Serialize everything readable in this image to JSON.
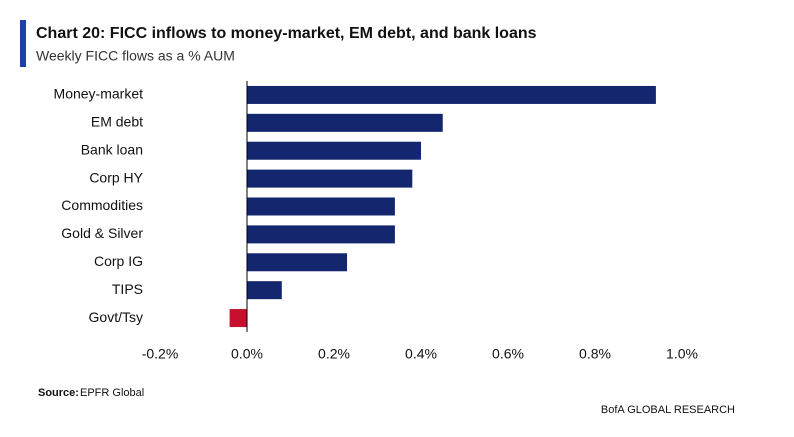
{
  "chart_data": {
    "type": "bar",
    "orientation": "horizontal",
    "title": "Chart 20: FICC inflows to money-market, EM debt, and bank loans",
    "subtitle": "Weekly FICC flows as a % AUM",
    "categories": [
      "Money-market",
      "EM debt",
      "Bank loan",
      "Corp HY",
      "Commodities",
      "Gold & Silver",
      "Corp IG",
      "TIPS",
      "Govt/Tsy"
    ],
    "values": [
      0.94,
      0.45,
      0.4,
      0.38,
      0.34,
      0.34,
      0.23,
      0.08,
      -0.04
    ],
    "colors": [
      "#14276e",
      "#14276e",
      "#14276e",
      "#14276e",
      "#14276e",
      "#14276e",
      "#14276e",
      "#14276e",
      "#c8102e"
    ],
    "xlim": [
      -0.2,
      1.0
    ],
    "xticks": [
      {
        "value": -0.2,
        "label": "-0.2%"
      },
      {
        "value": 0.0,
        "label": "0.0%"
      },
      {
        "value": 0.2,
        "label": "0.2%"
      },
      {
        "value": 0.4,
        "label": "0.4%"
      },
      {
        "value": 0.6,
        "label": "0.6%"
      },
      {
        "value": 0.8,
        "label": "0.8%"
      },
      {
        "value": 1.0,
        "label": "1.0%"
      }
    ],
    "grid": false,
    "source_label": "Source:",
    "source": "EPFR Global",
    "footer": "BofA GLOBAL RESEARCH"
  }
}
